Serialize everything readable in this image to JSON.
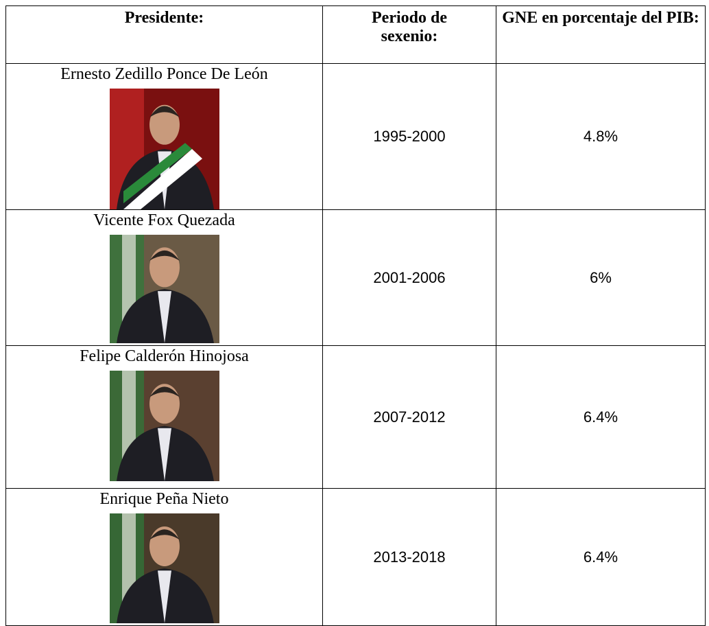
{
  "table": {
    "header": [
      "Presidente:",
      "Periodo de sexenio:",
      "GNE en porcentaje del PIB:"
    ],
    "rows": [
      [
        "Ernesto Zedillo Ponce De León",
        "1995-2000",
        "4.8%"
      ],
      [
        "Vicente Fox Quezada",
        "2001-2006",
        "6%"
      ],
      [
        "Felipe Calderón Hinojosa",
        "2007-2012",
        "6.4%"
      ],
      [
        "Enrique Peña Nieto",
        "2013-2018",
        "6.4%"
      ]
    ]
  }
}
